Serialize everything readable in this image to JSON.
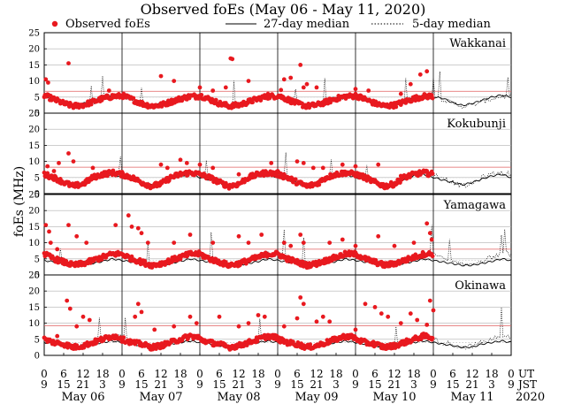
{
  "chart_data": {
    "type": "scatter",
    "title": "Observed foEs (May 06 - May 11, 2020)",
    "ylabel": "foEs (MHz)",
    "ylim": [
      0,
      25
    ],
    "y_ticks": [
      0,
      5,
      10,
      15,
      20,
      25
    ],
    "legend": {
      "placement": "top",
      "observed": "Observed foEs",
      "median27": "27-day median",
      "median5": "5-day median"
    },
    "colors": {
      "observed": "#e8191f",
      "red_line": "#e06060",
      "grid": "#b0b0b0",
      "median": "#000000"
    },
    "timezone_labels": {
      "ut": "UT",
      "jst": "JST"
    },
    "year_label": "2020",
    "days": [
      "May 06",
      "May 07",
      "May 08",
      "May 09",
      "May 10",
      "May 11"
    ],
    "hour_ticks_ut": [
      "0",
      "6",
      "12",
      "18",
      "0",
      "6",
      "12",
      "18",
      "0",
      "6",
      "12",
      "18",
      "0",
      "6",
      "12",
      "18",
      "0",
      "6",
      "12",
      "18",
      "0",
      "6",
      "12",
      "18",
      "0"
    ],
    "hour_ticks_jst": [
      "9",
      "15",
      "21",
      "3",
      "9",
      "15",
      "21",
      "3",
      "9",
      "15",
      "21",
      "3",
      "9",
      "15",
      "21",
      "3",
      "9",
      "15",
      "21",
      "3",
      "9",
      "15",
      "21",
      "3",
      "9"
    ],
    "observed_until_hour": 120,
    "stations": [
      {
        "name": "Wakkanai",
        "reference_line": 5.0,
        "red_hline": 6.8,
        "anchors_median27": [
          [
            0,
            5
          ],
          [
            3,
            4.6
          ],
          [
            6,
            3.2
          ],
          [
            9,
            2.4
          ],
          [
            12,
            3
          ],
          [
            15,
            4
          ],
          [
            18,
            5
          ],
          [
            21,
            5.6
          ],
          [
            24,
            5
          ]
        ],
        "anchors_obs": [
          [
            0,
            5.5
          ],
          [
            3,
            4.3
          ],
          [
            6,
            3
          ],
          [
            9,
            2.2
          ],
          [
            12,
            2.5
          ],
          [
            15,
            3.5
          ],
          [
            18,
            4.5
          ],
          [
            21,
            5.2
          ],
          [
            24,
            5.3
          ]
        ],
        "spikes": [
          [
            0.5,
            10.5
          ],
          [
            1.2,
            9.5
          ],
          [
            7.5,
            15.5
          ],
          [
            20,
            7
          ],
          [
            36,
            11.5
          ],
          [
            40,
            10
          ],
          [
            48,
            8
          ],
          [
            52,
            7
          ],
          [
            56,
            8
          ],
          [
            57.5,
            17
          ],
          [
            58,
            16.8
          ],
          [
            63,
            10
          ],
          [
            69,
            6
          ],
          [
            73,
            7.2
          ],
          [
            74,
            10.5
          ],
          [
            76,
            11
          ],
          [
            79,
            15
          ],
          [
            80,
            8
          ],
          [
            81,
            9
          ],
          [
            84,
            8
          ],
          [
            96,
            7.5
          ],
          [
            100,
            7
          ],
          [
            110,
            6
          ],
          [
            113,
            9
          ],
          [
            116,
            12
          ],
          [
            118,
            13
          ]
        ]
      },
      {
        "name": "Kokubunji",
        "reference_line": 5.0,
        "red_hline": 8.2,
        "anchors_median27": [
          [
            0,
            5
          ],
          [
            3,
            4.2
          ],
          [
            6,
            3.5
          ],
          [
            9,
            2.7
          ],
          [
            12,
            3.5
          ],
          [
            15,
            4.5
          ],
          [
            18,
            5.5
          ],
          [
            21,
            6
          ],
          [
            24,
            5
          ]
        ],
        "anchors_obs": [
          [
            0,
            6
          ],
          [
            3,
            5
          ],
          [
            6,
            3.5
          ],
          [
            9,
            2.3
          ],
          [
            12,
            3
          ],
          [
            15,
            5
          ],
          [
            18,
            6
          ],
          [
            21,
            6.5
          ],
          [
            24,
            6
          ]
        ],
        "spikes": [
          [
            1,
            8.5
          ],
          [
            3,
            7
          ],
          [
            4.5,
            9.5
          ],
          [
            7.5,
            12.5
          ],
          [
            9,
            10
          ],
          [
            15,
            8
          ],
          [
            20,
            7
          ],
          [
            36,
            9
          ],
          [
            38,
            8
          ],
          [
            42,
            10.5
          ],
          [
            44,
            9.5
          ],
          [
            48,
            9
          ],
          [
            52,
            8
          ],
          [
            60,
            6
          ],
          [
            67,
            6.5
          ],
          [
            68,
            6.5
          ],
          [
            70,
            9.5
          ],
          [
            72,
            7
          ],
          [
            74,
            6
          ],
          [
            78,
            10
          ],
          [
            80,
            9.5
          ],
          [
            83,
            8
          ],
          [
            86,
            8
          ],
          [
            92,
            9
          ],
          [
            96,
            8.5
          ],
          [
            103,
            9
          ],
          [
            110,
            5.5
          ],
          [
            118,
            7
          ]
        ]
      },
      {
        "name": "Yamagawa",
        "reference_line": 4.5,
        "red_hline": 8.0,
        "anchors_median27": [
          [
            0,
            4.5
          ],
          [
            3,
            4
          ],
          [
            6,
            3.5
          ],
          [
            9,
            3
          ],
          [
            12,
            3
          ],
          [
            15,
            3.6
          ],
          [
            18,
            4.2
          ],
          [
            21,
            5
          ],
          [
            24,
            4.5
          ]
        ],
        "anchors_obs": [
          [
            0,
            6.5
          ],
          [
            3,
            5
          ],
          [
            6,
            4
          ],
          [
            9,
            3
          ],
          [
            12,
            3.5
          ],
          [
            15,
            4.5
          ],
          [
            18,
            5.5
          ],
          [
            21,
            6.5
          ],
          [
            24,
            6.5
          ]
        ],
        "spikes": [
          [
            0.5,
            15.5
          ],
          [
            1.5,
            13.5
          ],
          [
            2,
            10
          ],
          [
            4,
            8
          ],
          [
            7.5,
            15.5
          ],
          [
            10,
            12
          ],
          [
            13,
            10
          ],
          [
            22,
            15.5
          ],
          [
            26,
            18.5
          ],
          [
            27,
            15
          ],
          [
            29,
            14.5
          ],
          [
            30,
            13
          ],
          [
            32,
            10
          ],
          [
            40,
            10
          ],
          [
            45,
            12.5
          ],
          [
            52,
            10
          ],
          [
            60,
            12
          ],
          [
            63,
            10
          ],
          [
            67,
            12.5
          ],
          [
            74,
            10
          ],
          [
            76,
            9
          ],
          [
            79,
            12.5
          ],
          [
            80,
            10
          ],
          [
            88,
            10
          ],
          [
            92,
            11
          ],
          [
            96,
            9
          ],
          [
            103,
            12
          ],
          [
            108,
            9
          ],
          [
            114,
            10
          ],
          [
            118,
            16
          ],
          [
            119,
            13
          ],
          [
            119.5,
            11
          ]
        ]
      },
      {
        "name": "Okinawa",
        "reference_line": 4.0,
        "red_hline": 9.2,
        "anchors_median27": [
          [
            0,
            4
          ],
          [
            3,
            3.5
          ],
          [
            6,
            3
          ],
          [
            9,
            2.5
          ],
          [
            12,
            2.6
          ],
          [
            15,
            3.5
          ],
          [
            18,
            4
          ],
          [
            21,
            4.5
          ],
          [
            24,
            4
          ]
        ],
        "anchors_obs": [
          [
            0,
            5
          ],
          [
            3,
            4
          ],
          [
            6,
            3.5
          ],
          [
            9,
            2.5
          ],
          [
            12,
            3
          ],
          [
            15,
            4
          ],
          [
            18,
            5
          ],
          [
            21,
            6
          ],
          [
            24,
            5.5
          ]
        ],
        "spikes": [
          [
            4,
            6
          ],
          [
            7,
            17
          ],
          [
            8,
            14.5
          ],
          [
            10,
            9
          ],
          [
            12,
            12
          ],
          [
            14,
            11
          ],
          [
            20,
            5
          ],
          [
            28,
            12
          ],
          [
            29,
            16
          ],
          [
            30,
            13.5
          ],
          [
            34,
            8
          ],
          [
            40,
            9
          ],
          [
            45,
            12
          ],
          [
            47,
            10
          ],
          [
            54,
            12
          ],
          [
            60,
            9
          ],
          [
            63,
            10
          ],
          [
            66,
            12.5
          ],
          [
            68,
            12
          ],
          [
            74,
            9
          ],
          [
            78,
            11.5
          ],
          [
            79,
            18
          ],
          [
            80,
            16
          ],
          [
            84,
            10.5
          ],
          [
            86,
            12
          ],
          [
            88,
            10.5
          ],
          [
            96,
            8
          ],
          [
            99,
            16
          ],
          [
            102,
            15
          ],
          [
            104,
            13
          ],
          [
            106,
            12
          ],
          [
            110,
            10
          ],
          [
            113,
            13
          ],
          [
            115,
            11
          ],
          [
            118,
            9.5
          ],
          [
            119,
            17
          ],
          [
            120,
            14
          ]
        ]
      }
    ]
  }
}
